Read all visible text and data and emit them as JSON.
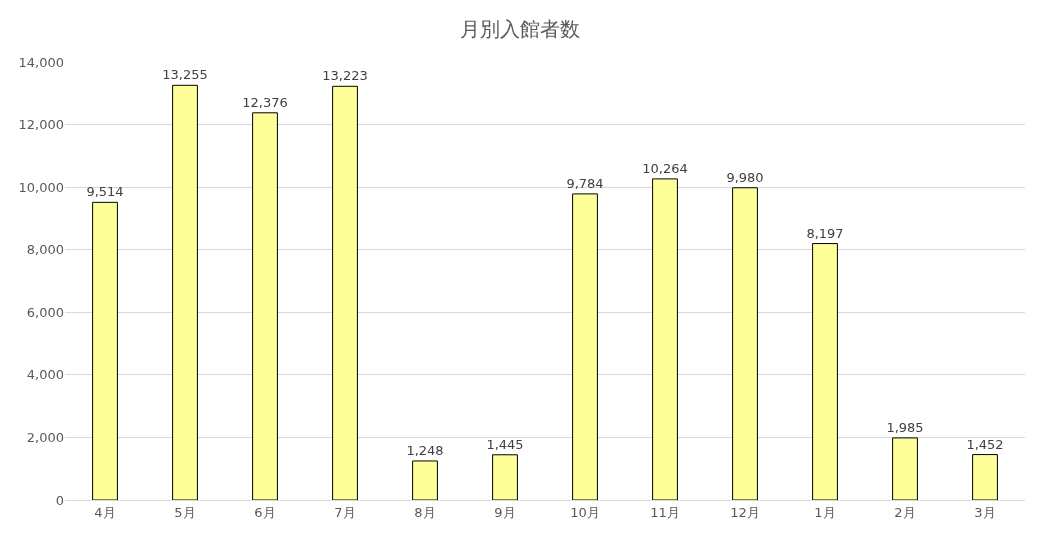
{
  "chart_data": {
    "type": "bar",
    "title": "月別入館者数",
    "categories": [
      "4月",
      "5月",
      "6月",
      "7月",
      "8月",
      "9月",
      "10月",
      "11月",
      "12月",
      "1月",
      "2月",
      "3月"
    ],
    "values": [
      9514,
      13255,
      12376,
      13223,
      1248,
      1445,
      9784,
      10264,
      9980,
      8197,
      1985,
      1452
    ],
    "value_labels": [
      "9,514",
      "13,255",
      "12,376",
      "13,223",
      "1,248",
      "1,445",
      "9,784",
      "10,264",
      "9,980",
      "8,197",
      "1,985",
      "1,452"
    ],
    "color": "#ffff99",
    "ylim": [
      0,
      14000
    ],
    "yticks": [
      {
        "value": 0,
        "label": "0"
      },
      {
        "value": 2000,
        "label": "2,000"
      },
      {
        "value": 4000,
        "label": "4,000"
      },
      {
        "value": 6000,
        "label": "6,000"
      },
      {
        "value": 8000,
        "label": "8,000"
      },
      {
        "value": 10000,
        "label": "10,000"
      },
      {
        "value": 12000,
        "label": "12,000"
      },
      {
        "value": 14000,
        "label": "14,000"
      }
    ],
    "grid": "y",
    "legend": false
  }
}
